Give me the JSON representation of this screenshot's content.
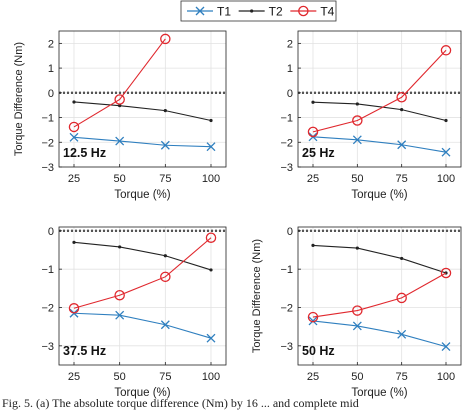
{
  "legend": {
    "placement": "top-center",
    "items": [
      {
        "label": "T1",
        "color": "#2f7fbf",
        "marker": "x"
      },
      {
        "label": "T2",
        "color": "#222222",
        "marker": "dot"
      },
      {
        "label": "T4",
        "color": "#e0282e",
        "marker": "circle"
      }
    ]
  },
  "caption": "Fig. 5. (a) The absolute torque difference (Nm) by 16 ... and complete mid",
  "chart_data": [
    {
      "type": "line",
      "panel_label": "12.5 Hz",
      "categories": [
        25,
        50,
        75,
        100
      ],
      "xlabel": "Torque (%)",
      "ylabel": "Torque Difference (Nm)",
      "ylim": [
        -3,
        2.5
      ],
      "yticks": [
        -3,
        -2,
        -1,
        0,
        1,
        2
      ],
      "grid": true,
      "zero_line": true,
      "series": [
        {
          "name": "T1",
          "values": [
            -1.8,
            -1.95,
            -2.12,
            -2.18
          ]
        },
        {
          "name": "T2",
          "values": [
            -0.37,
            -0.52,
            -0.72,
            -1.12
          ]
        },
        {
          "name": "T4",
          "values": [
            -1.38,
            -0.27,
            null,
            null
          ],
          "extends_to": {
            "x": 75,
            "y": 2.18
          }
        }
      ]
    },
    {
      "type": "line",
      "panel_label": "25 Hz",
      "categories": [
        25,
        50,
        75,
        100
      ],
      "xlabel": "Torque (%)",
      "ylabel": "",
      "ylim": [
        -3,
        2.5
      ],
      "yticks": [
        -3,
        -2,
        -1,
        0,
        1,
        2
      ],
      "grid": true,
      "zero_line": true,
      "series": [
        {
          "name": "T1",
          "values": [
            -1.78,
            -1.9,
            -2.1,
            -2.4
          ]
        },
        {
          "name": "T2",
          "values": [
            -0.38,
            -0.45,
            -0.68,
            -1.12
          ]
        },
        {
          "name": "T4",
          "values": [
            -1.58,
            -1.12,
            -0.18,
            1.72
          ]
        }
      ]
    },
    {
      "type": "line",
      "panel_label": "37.5 Hz",
      "categories": [
        25,
        50,
        75,
        100
      ],
      "xlabel": "Torque (%)",
      "ylabel": "",
      "ylim": [
        -3.5,
        0.1
      ],
      "yticks": [
        -3,
        -2,
        -1,
        0
      ],
      "grid": true,
      "zero_line": true,
      "series": [
        {
          "name": "T1",
          "values": [
            -2.15,
            -2.2,
            -2.45,
            -2.8
          ]
        },
        {
          "name": "T2",
          "values": [
            -0.3,
            -0.42,
            -0.65,
            -1.02
          ]
        },
        {
          "name": "T4",
          "values": [
            -2.02,
            -1.68,
            -1.2,
            -0.18
          ]
        }
      ]
    },
    {
      "type": "line",
      "panel_label": "50 Hz",
      "categories": [
        25,
        50,
        75,
        100
      ],
      "xlabel": "Torque (%)",
      "ylabel": "Torque Difference (Nm)",
      "ylim": [
        -3.5,
        0.1
      ],
      "yticks": [
        -3,
        -2,
        -1,
        0
      ],
      "grid": true,
      "zero_line": true,
      "series": [
        {
          "name": "T1",
          "values": [
            -2.35,
            -2.48,
            -2.7,
            -3.02
          ]
        },
        {
          "name": "T2",
          "values": [
            -0.38,
            -0.45,
            -0.72,
            -1.1
          ]
        },
        {
          "name": "T4",
          "values": [
            -2.25,
            -2.08,
            -1.75,
            -1.1
          ]
        }
      ]
    }
  ]
}
